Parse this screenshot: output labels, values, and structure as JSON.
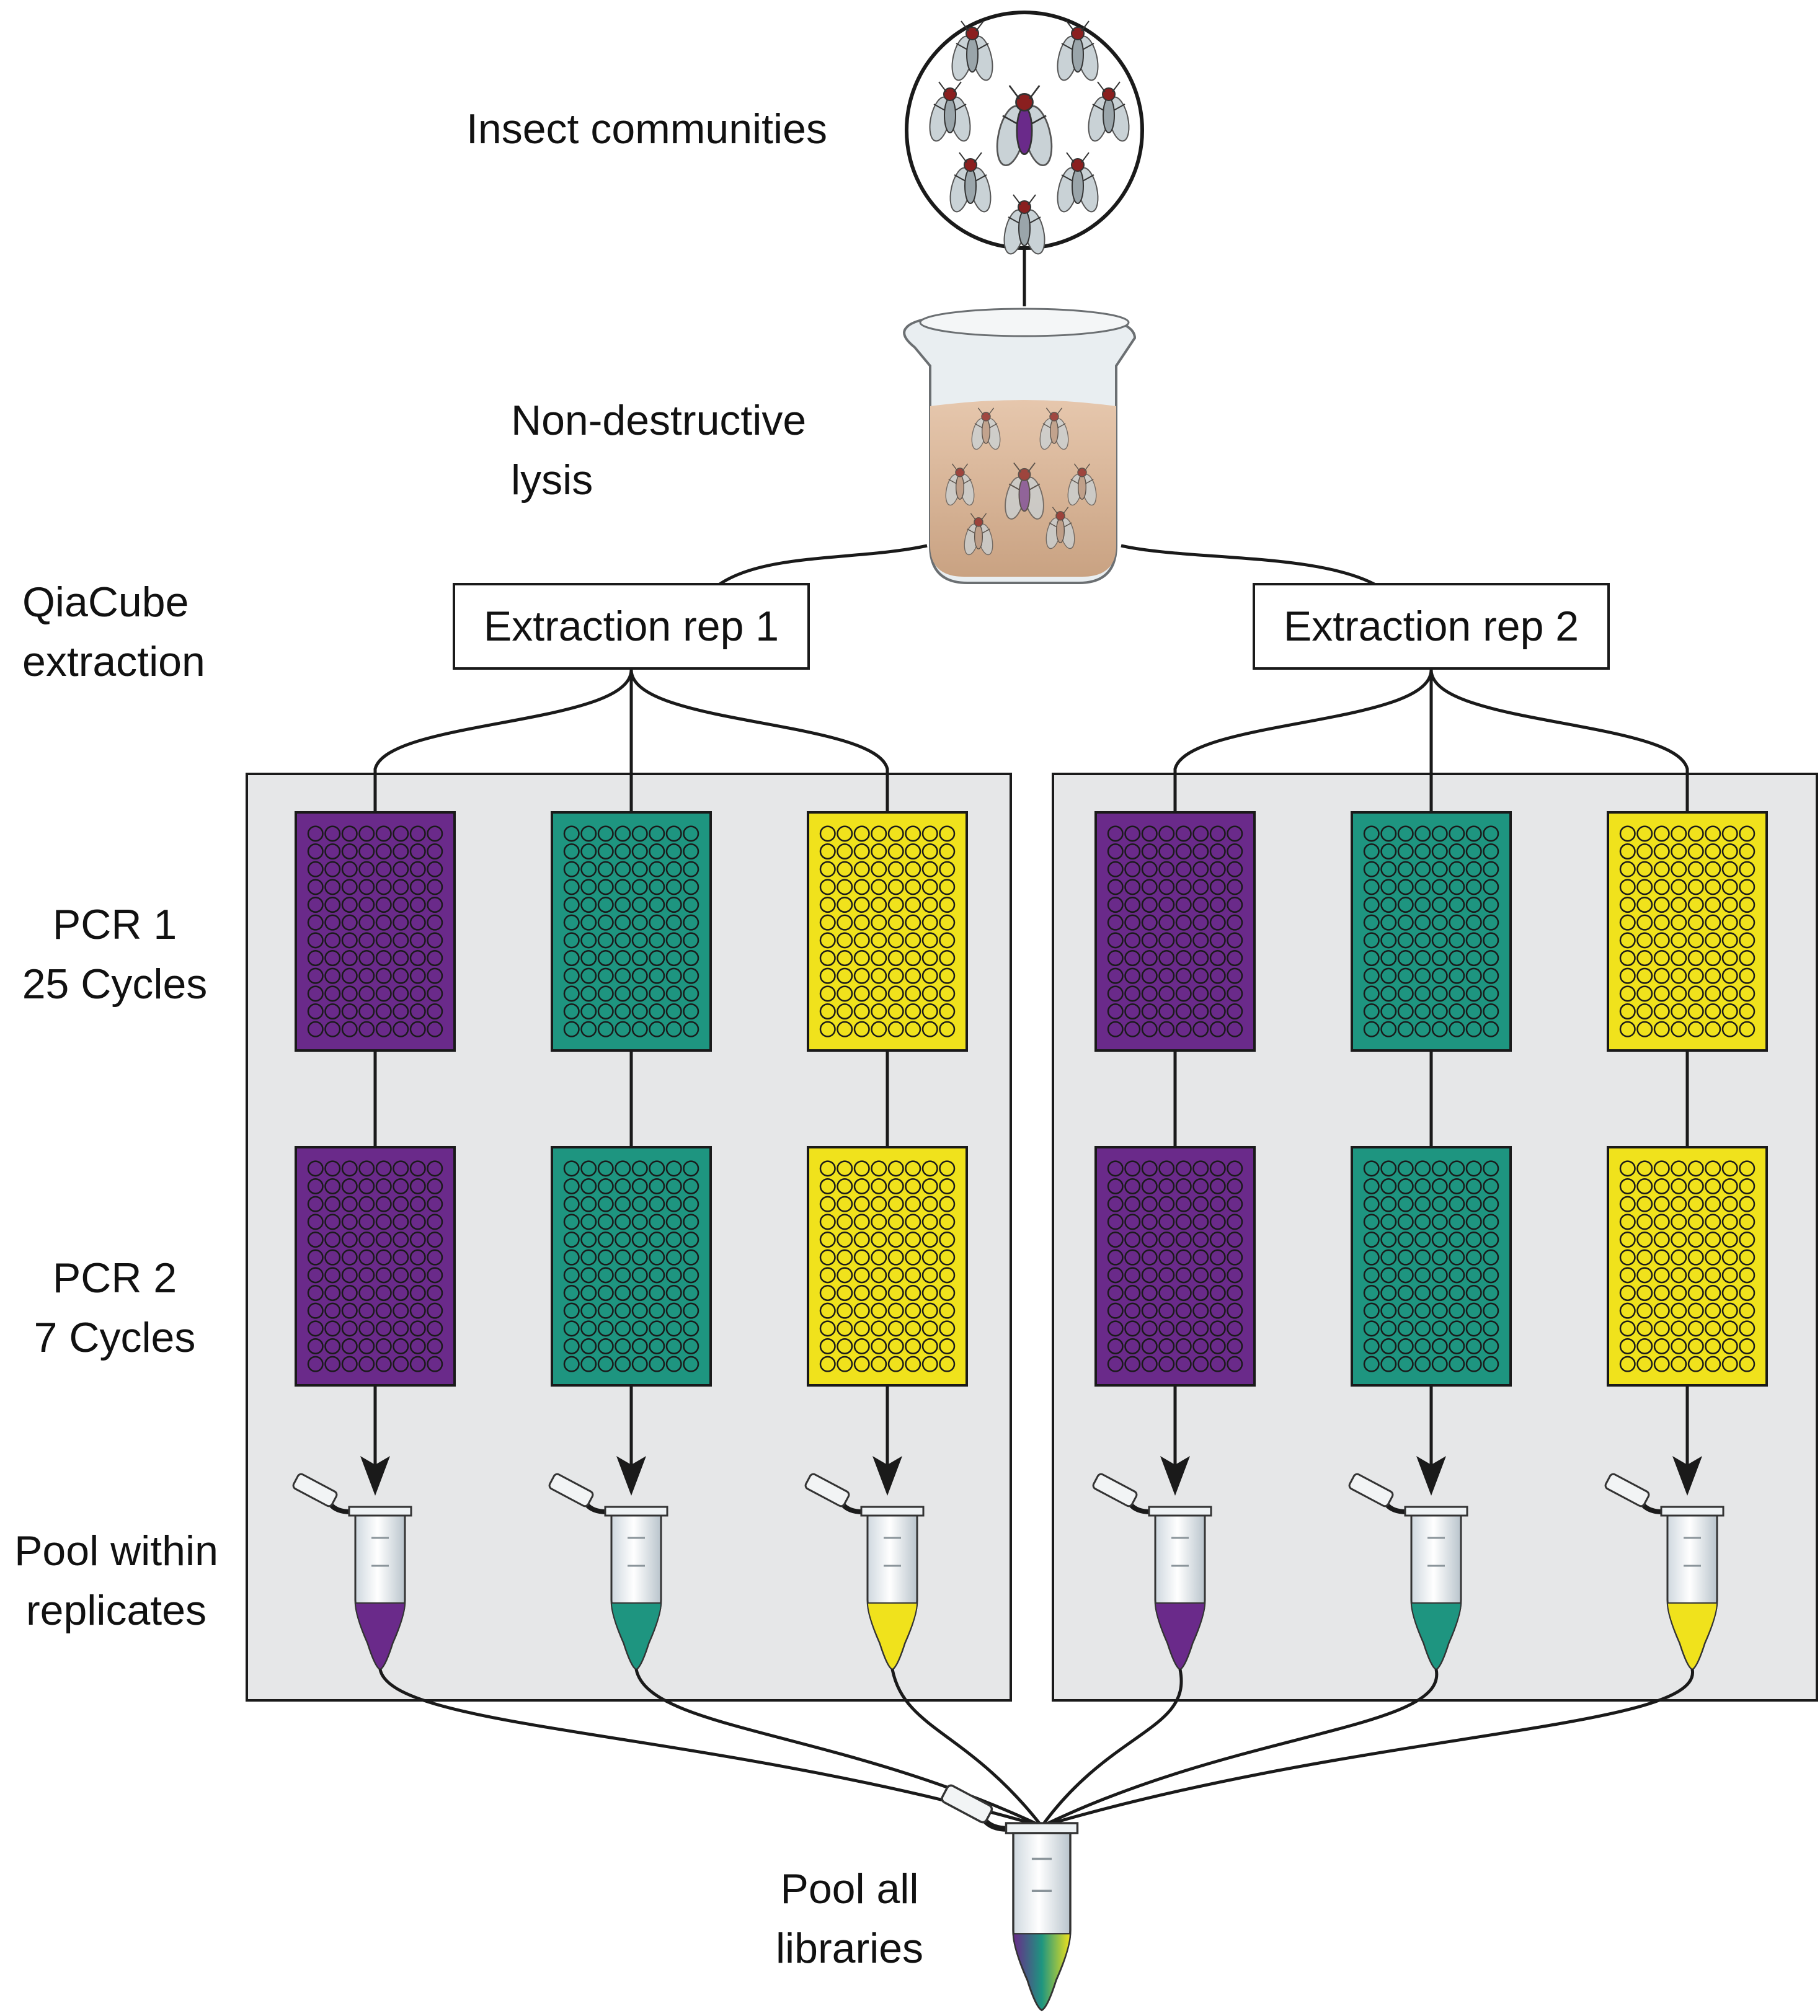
{
  "labels": {
    "insect_communities": "Insect communities",
    "lysis_line1": "Non-destructive",
    "lysis_line2": "lysis",
    "qiacube_line1": "QiaCube",
    "qiacube_line2": "extraction",
    "pcr1_line1": "PCR 1",
    "pcr1_line2": "25 Cycles",
    "pcr2_line1": "PCR 2",
    "pcr2_line2": "7 Cycles",
    "pool_within_line1": "Pool within",
    "pool_within_line2": "replicates",
    "pool_all_line1": "Pool all",
    "pool_all_line2": "libraries"
  },
  "replicates": [
    {
      "label": "Extraction rep 1"
    },
    {
      "label": "Extraction rep 2"
    }
  ],
  "colors": {
    "purple": "#6a2a8a",
    "teal": "#1e9580",
    "yellow": "#f0e21c",
    "panel": "#e6e7e8",
    "line": "#1a1a1a"
  },
  "plates": {
    "wells_columns": 8,
    "wells_rows": 12,
    "dye_order": [
      "purple",
      "teal",
      "yellow"
    ]
  }
}
